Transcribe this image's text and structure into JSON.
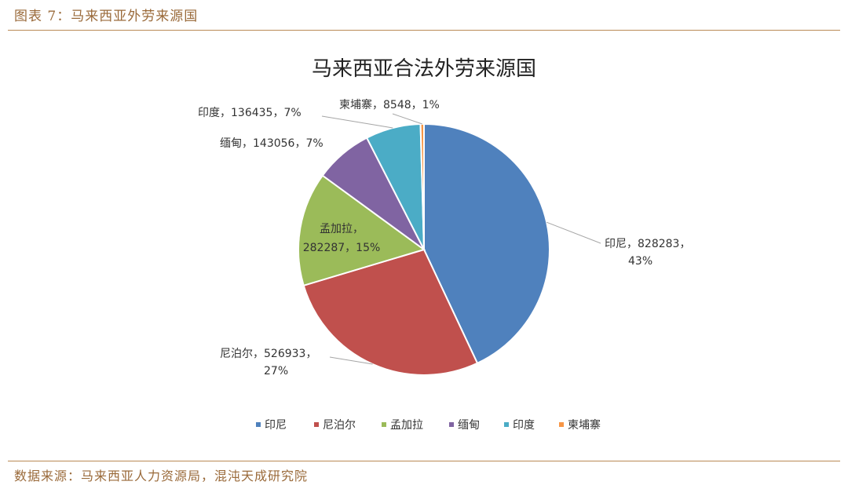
{
  "figure_title": "图表 7：马来西亚外劳来源国",
  "source": "数据来源：马来西亚人力资源局，混沌天成研究院",
  "chart_data": {
    "type": "pie",
    "title": "马来西亚合法外劳来源国",
    "legend_position": "bottom",
    "slices": [
      {
        "name": "印尼",
        "value": 828283,
        "percent": "43%",
        "color": "#4f81bd",
        "label_lines": [
          "印尼，828283，",
          "43%"
        ]
      },
      {
        "name": "尼泊尔",
        "value": 526933,
        "percent": "27%",
        "color": "#c0504d",
        "label_lines": [
          "尼泊尔，526933，",
          "27%"
        ]
      },
      {
        "name": "孟加拉",
        "value": 282287,
        "percent": "15%",
        "color": "#9bbb59",
        "label_lines": [
          "孟加拉，",
          "282287，15%"
        ]
      },
      {
        "name": "缅甸",
        "value": 143056,
        "percent": "7%",
        "color": "#8064a2",
        "label_lines": [
          "缅甸，143056，7%"
        ]
      },
      {
        "name": "印度",
        "value": 136435,
        "percent": "7%",
        "color": "#4bacc6",
        "label_lines": [
          "印度，136435，7%"
        ]
      },
      {
        "name": "柬埔寨",
        "value": 8548,
        "percent": "1%",
        "color": "#f79646",
        "label_lines": [
          "柬埔寨，8548，1%"
        ]
      }
    ]
  }
}
